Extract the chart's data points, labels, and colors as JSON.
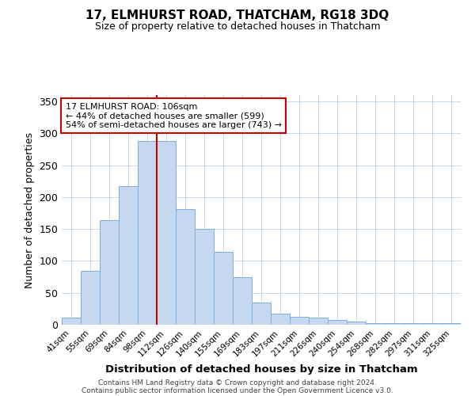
{
  "title": "17, ELMHURST ROAD, THATCHAM, RG18 3DQ",
  "subtitle": "Size of property relative to detached houses in Thatcham",
  "xlabel": "Distribution of detached houses by size in Thatcham",
  "ylabel": "Number of detached properties",
  "bar_labels": [
    "41sqm",
    "55sqm",
    "69sqm",
    "84sqm",
    "98sqm",
    "112sqm",
    "126sqm",
    "140sqm",
    "155sqm",
    "169sqm",
    "183sqm",
    "197sqm",
    "211sqm",
    "226sqm",
    "240sqm",
    "254sqm",
    "268sqm",
    "282sqm",
    "297sqm",
    "311sqm",
    "325sqm"
  ],
  "bar_values": [
    11,
    84,
    164,
    217,
    288,
    288,
    181,
    150,
    114,
    75,
    35,
    17,
    13,
    11,
    8,
    5,
    2,
    2,
    2,
    2,
    2
  ],
  "bar_color": "#c5d8ef",
  "bar_edge_color": "#7aafe0",
  "ylim": [
    0,
    360
  ],
  "yticks": [
    0,
    50,
    100,
    150,
    200,
    250,
    300,
    350
  ],
  "property_line_x": 4.5,
  "property_line_color": "#cc0000",
  "annotation_title": "17 ELMHURST ROAD: 106sqm",
  "annotation_line2": "← 44% of detached houses are smaller (599)",
  "annotation_line3": "54% of semi-detached houses are larger (743) →",
  "annotation_box_color": "#ffffff",
  "annotation_box_edge_color": "#cc0000",
  "footer_line1": "Contains HM Land Registry data © Crown copyright and database right 2024.",
  "footer_line2": "Contains public sector information licensed under the Open Government Licence v3.0.",
  "background_color": "#ffffff",
  "grid_color": "#c8d8e8"
}
